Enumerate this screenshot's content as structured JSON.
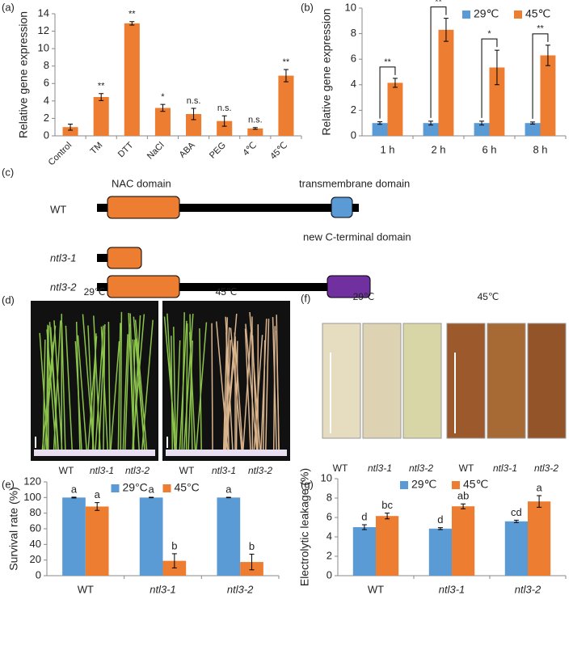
{
  "chart_data": [
    {
      "type": "bar",
      "panel_label": "(a)",
      "y_label": "Relative gene expression",
      "categories": [
        "Control",
        "TM",
        "DTT",
        "NaCl",
        "ABA",
        "PEG",
        "4℃",
        "45℃"
      ],
      "values": [
        1.0,
        4.45,
        12.9,
        3.2,
        2.5,
        1.7,
        0.85,
        6.9
      ],
      "errors": [
        0.35,
        0.4,
        0.2,
        0.4,
        0.65,
        0.6,
        0.1,
        0.7
      ],
      "significance": [
        null,
        "**",
        "**",
        "*",
        "n.s.",
        "n.s.",
        "n.s.",
        "**"
      ],
      "color": "#ed7d31",
      "ylim": [
        0,
        14
      ],
      "yticks": [
        0,
        2,
        4,
        6,
        8,
        10,
        12,
        14
      ]
    },
    {
      "type": "bar",
      "panel_label": "(b)",
      "y_label": "Relative gene expression",
      "categories": [
        "1 h",
        "2 h",
        "6 h",
        "8 h"
      ],
      "series": [
        {
          "name": "29℃",
          "color": "#5b9bd5",
          "values": [
            1,
            1,
            1,
            1
          ],
          "errors": [
            0.1,
            0.15,
            0.15,
            0.08
          ]
        },
        {
          "name": "45℃",
          "color": "#ed7d31",
          "values": [
            4.15,
            8.3,
            5.35,
            6.3
          ],
          "errors": [
            0.35,
            0.9,
            1.35,
            0.8
          ]
        }
      ],
      "significance": [
        "**",
        "**",
        "*",
        "**"
      ],
      "legend": "top-right",
      "ylim": [
        0,
        10
      ],
      "yticks": [
        0,
        2,
        4,
        6,
        8,
        10
      ]
    },
    {
      "type": "bar",
      "panel_label": "(e)",
      "y_label": "Survival rate (%)",
      "categories": [
        "WT",
        "ntl3-1",
        "ntl3-2"
      ],
      "series": [
        {
          "name": "29°C",
          "color": "#5b9bd5",
          "values": [
            100,
            100,
            100
          ],
          "errors": [
            0.5,
            0.3,
            0.3
          ],
          "letters": [
            "a",
            "a",
            "a"
          ]
        },
        {
          "name": "45°C",
          "color": "#ed7d31",
          "values": [
            88.5,
            19,
            17.5
          ],
          "errors": [
            5,
            9,
            10
          ],
          "letters": [
            "a",
            "b",
            "b"
          ]
        }
      ],
      "legend": "top",
      "ylim": [
        0,
        120
      ],
      "yticks": [
        0,
        20,
        40,
        60,
        80,
        100,
        120
      ]
    },
    {
      "type": "bar",
      "panel_label": "(g)",
      "y_label": "Electrolytic leakage (%)",
      "categories": [
        "WT",
        "ntl3-1",
        "ntl3-2"
      ],
      "series": [
        {
          "name": "29℃",
          "color": "#5b9bd5",
          "values": [
            5.0,
            4.85,
            5.6
          ],
          "errors": [
            0.25,
            0.1,
            0.12
          ],
          "letters": [
            "d",
            "d",
            "cd"
          ]
        },
        {
          "name": "45℃",
          "color": "#ed7d31",
          "values": [
            6.15,
            7.15,
            7.65
          ],
          "errors": [
            0.3,
            0.25,
            0.6
          ],
          "letters": [
            "bc",
            "ab",
            "a"
          ]
        }
      ],
      "legend": "top",
      "ylim": [
        0,
        10
      ],
      "yticks": [
        0,
        2,
        4,
        6,
        8,
        10
      ]
    }
  ],
  "diagram": {
    "panel_label": "(c)",
    "nac_domain": "NAC domain",
    "tm_domain": "transmembrane domain",
    "new_domain": "new C-terminal domain",
    "rows": [
      "WT",
      "ntl3-1",
      "ntl3-2"
    ]
  },
  "photos_d": {
    "panel_label": "(d)",
    "conditions": [
      "29℃",
      "45℃"
    ],
    "genotypes": [
      [
        "WT",
        "ntl3-1",
        "ntl3-2"
      ],
      [
        "WT",
        "ntl3-1",
        "ntl3-2"
      ]
    ]
  },
  "photos_f": {
    "panel_label": "(f)",
    "conditions": [
      "29℃",
      "45℃"
    ],
    "genotypes": [
      [
        "WT",
        "ntl3-1",
        "ntl3-2"
      ],
      [
        "WT",
        "ntl3-1",
        "ntl3-2"
      ]
    ]
  }
}
